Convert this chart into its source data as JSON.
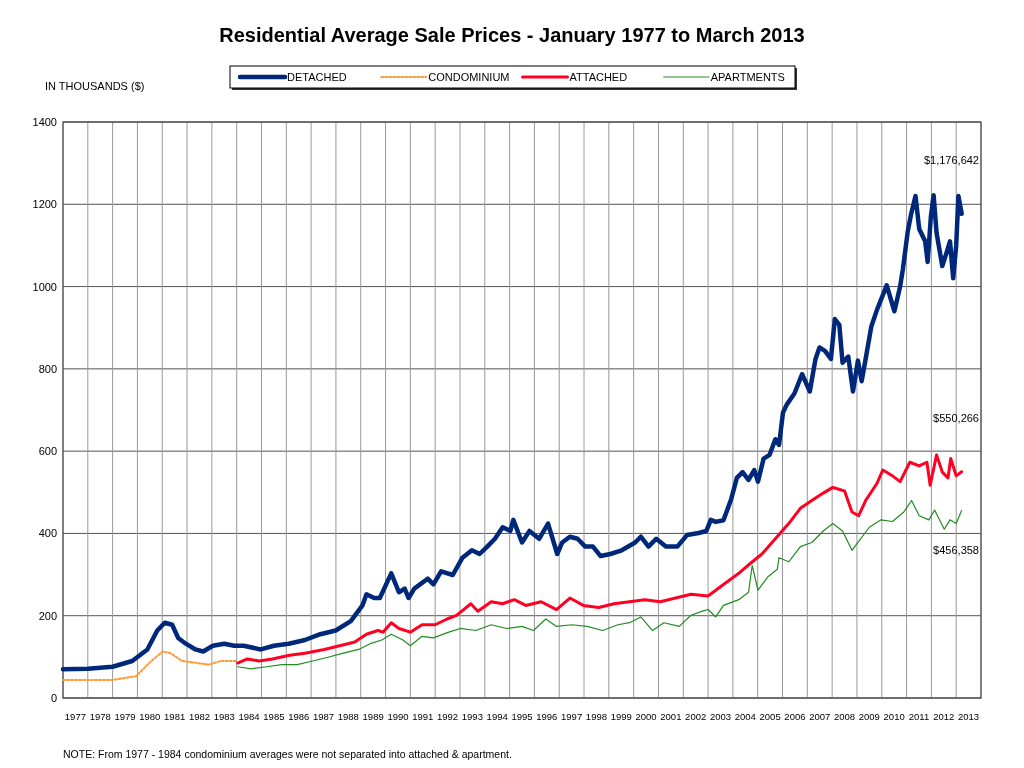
{
  "chart_data": {
    "type": "line",
    "title": "Residential Average Sale Prices  -  January 1977 to March 2013",
    "ylabel": "IN THOUSANDS ($)",
    "xlim": [
      1977,
      2014
    ],
    "ylim": [
      0,
      1400
    ],
    "yticks": [
      0,
      200,
      400,
      600,
      800,
      1000,
      1200,
      1400
    ],
    "xticks": [
      {
        "value": 1977,
        "label": null
      },
      {
        "value": 1977.5,
        "label": "1977"
      },
      {
        "value": 1978,
        "label": null
      },
      {
        "value": 1978.5,
        "label": "1978"
      },
      {
        "value": 1979,
        "label": null
      },
      {
        "value": 1979.5,
        "label": "1979"
      },
      {
        "value": 1980,
        "label": null
      },
      {
        "value": 1980.5,
        "label": "1980"
      },
      {
        "value": 1981,
        "label": null
      },
      {
        "value": 1981.5,
        "label": "1981"
      },
      {
        "value": 1982,
        "label": null
      },
      {
        "value": 1982.5,
        "label": "1982"
      },
      {
        "value": 1983,
        "label": null
      },
      {
        "value": 1983.5,
        "label": "1983"
      },
      {
        "value": 1984,
        "label": null
      },
      {
        "value": 1984.5,
        "label": "1984"
      },
      {
        "value": 1985,
        "label": null
      },
      {
        "value": 1985.5,
        "label": "1985"
      },
      {
        "value": 1986,
        "label": null
      },
      {
        "value": 1986.5,
        "label": "1986"
      },
      {
        "value": 1987,
        "label": null
      },
      {
        "value": 1987.5,
        "label": "1987"
      },
      {
        "value": 1988,
        "label": null
      },
      {
        "value": 1988.5,
        "label": "1988"
      },
      {
        "value": 1989,
        "label": null
      },
      {
        "value": 1989.5,
        "label": "1989"
      },
      {
        "value": 1990,
        "label": null
      },
      {
        "value": 1990.5,
        "label": "1990"
      },
      {
        "value": 1991,
        "label": null
      },
      {
        "value": 1991.5,
        "label": "1991"
      },
      {
        "value": 1992,
        "label": null
      },
      {
        "value": 1992.5,
        "label": "1992"
      },
      {
        "value": 1993,
        "label": null
      },
      {
        "value": 1993.5,
        "label": "1993"
      },
      {
        "value": 1994,
        "label": null
      },
      {
        "value": 1994.5,
        "label": "1994"
      },
      {
        "value": 1995,
        "label": null
      },
      {
        "value": 1995.5,
        "label": "1995"
      },
      {
        "value": 1996,
        "label": null
      },
      {
        "value": 1996.5,
        "label": "1996"
      },
      {
        "value": 1997,
        "label": null
      },
      {
        "value": 1997.5,
        "label": "1997"
      },
      {
        "value": 1998,
        "label": null
      },
      {
        "value": 1998.5,
        "label": "1998"
      },
      {
        "value": 1999,
        "label": null
      },
      {
        "value": 1999.5,
        "label": "1999"
      },
      {
        "value": 2000,
        "label": null
      },
      {
        "value": 2000.5,
        "label": "2000"
      },
      {
        "value": 2001,
        "label": null
      },
      {
        "value": 2001.5,
        "label": "2001"
      },
      {
        "value": 2002,
        "label": null
      },
      {
        "value": 2002.5,
        "label": "2002"
      },
      {
        "value": 2003,
        "label": null
      },
      {
        "value": 2003.5,
        "label": "2003"
      },
      {
        "value": 2004,
        "label": null
      },
      {
        "value": 2004.5,
        "label": "2004"
      },
      {
        "value": 2005,
        "label": null
      },
      {
        "value": 2005.5,
        "label": "2005"
      },
      {
        "value": 2006,
        "label": null
      },
      {
        "value": 2006.5,
        "label": "2006"
      },
      {
        "value": 2007,
        "label": null
      },
      {
        "value": 2007.5,
        "label": "2007"
      },
      {
        "value": 2008,
        "label": null
      },
      {
        "value": 2008.5,
        "label": "2008"
      },
      {
        "value": 2009,
        "label": null
      },
      {
        "value": 2009.5,
        "label": "2009"
      },
      {
        "value": 2010,
        "label": null
      },
      {
        "value": 2010.5,
        "label": "2010"
      },
      {
        "value": 2011,
        "label": null
      },
      {
        "value": 2011.5,
        "label": "2011"
      },
      {
        "value": 2012,
        "label": null
      },
      {
        "value": 2012.5,
        "label": "2012"
      },
      {
        "value": 2013,
        "label": null
      },
      {
        "value": 2013.5,
        "label": "2013"
      },
      {
        "value": 2014,
        "label": null
      }
    ],
    "grid": true,
    "legend": "top",
    "marker": "none",
    "series": [
      {
        "name": "DETACHED",
        "color": "#00287a",
        "line_style": "solid",
        "x": [
          1977.0,
          1978.0,
          1979.0,
          1979.79,
          1980.4,
          1980.8,
          1981.1,
          1981.4,
          1981.64,
          1981.95,
          1982.34,
          1982.65,
          1983.04,
          1983.5,
          1983.9,
          1984.28,
          1984.97,
          1985.5,
          1986.1,
          1986.75,
          1987.37,
          1987.99,
          1988.6,
          1989.07,
          1989.23,
          1989.54,
          1989.77,
          1990.23,
          1990.54,
          1990.77,
          1990.93,
          1991.16,
          1991.39,
          1991.7,
          1991.93,
          1992.24,
          1992.71,
          1993.1,
          1993.48,
          1993.79,
          1994.1,
          1994.41,
          1994.72,
          1995.03,
          1995.15,
          1995.5,
          1995.8,
          1996.19,
          1996.55,
          1996.92,
          1997.12,
          1997.43,
          1997.74,
          1998.05,
          1998.36,
          1998.67,
          1999.06,
          1999.52,
          2000.06,
          2000.29,
          2000.6,
          2000.91,
          2001.3,
          2001.76,
          2002.15,
          2002.62,
          2002.93,
          2003.11,
          2003.31,
          2003.62,
          2003.93,
          2004.16,
          2004.39,
          2004.63,
          2004.86,
          2005.01,
          2005.24,
          2005.48,
          2005.71,
          2005.86,
          2006.02,
          2006.17,
          2006.48,
          2006.79,
          2007.1,
          2007.33,
          2007.49,
          2007.72,
          2007.95,
          2008.11,
          2008.29,
          2008.42,
          2008.65,
          2008.84,
          2009.04,
          2009.19,
          2009.35,
          2009.58,
          2009.81,
          2010.2,
          2010.51,
          2010.74,
          2010.85,
          2011.05,
          2011.18,
          2011.36,
          2011.51,
          2011.75,
          2011.85,
          2011.98,
          2012.09,
          2012.21,
          2012.44,
          2012.6,
          2012.75,
          2012.88,
          2013.0,
          2013.09,
          2013.22
        ],
        "values": [
          70,
          71,
          76,
          90,
          118,
          164,
          183,
          178,
          146,
          132,
          118,
          113,
          127,
          132,
          127,
          127,
          118,
          127,
          132,
          141,
          155,
          164,
          187,
          225,
          252,
          243,
          243,
          303,
          257,
          266,
          243,
          266,
          276,
          290,
          276,
          308,
          299,
          341,
          359,
          350,
          368,
          387,
          415,
          406,
          433,
          378,
          406,
          387,
          424,
          350,
          378,
          392,
          387,
          368,
          368,
          345,
          350,
          359,
          378,
          392,
          368,
          387,
          368,
          368,
          396,
          401,
          406,
          433,
          428,
          432,
          483,
          535,
          549,
          530,
          554,
          526,
          582,
          591,
          629,
          615,
          694,
          713,
          740,
          787,
          745,
          824,
          852,
          843,
          824,
          921,
          907,
          815,
          830,
          745,
          820,
          770,
          824,
          903,
          944,
          1003,
          940,
          1000,
          1042,
          1135,
          1175,
          1220,
          1140,
          1110,
          1060,
          1170,
          1222,
          1130,
          1050,
          1080,
          1110,
          1020,
          1100,
          1220,
          1177
        ]
      },
      {
        "name": "CONDOMINIUM",
        "color": "#ff9933",
        "line_style": "dotted",
        "x": [
          1977.0,
          1978.0,
          1979.0,
          1979.94,
          1980.56,
          1981.02,
          1981.33,
          1981.8,
          1982.42,
          1982.88,
          1983.35,
          1983.97
        ],
        "values": [
          44,
          44,
          44,
          53,
          90,
          113,
          109,
          90,
          85,
          81,
          90,
          90
        ]
      },
      {
        "name": "ATTACHED",
        "color": "#ff0022",
        "line_style": "solid",
        "x": [
          1984.04,
          1984.43,
          1984.9,
          1985.44,
          1986.13,
          1986.75,
          1987.53,
          1988.15,
          1988.76,
          1989.23,
          1989.69,
          1989.9,
          1990.23,
          1990.54,
          1991.0,
          1991.47,
          1992.0,
          1992.48,
          1992.86,
          1993.44,
          1993.72,
          1994.26,
          1994.72,
          1995.19,
          1995.65,
          1996.27,
          1996.89,
          1997.43,
          1997.97,
          1998.59,
          1999.21,
          1999.83,
          2000.45,
          2001.07,
          2001.69,
          2002.31,
          2003.0,
          2003.62,
          2004.24,
          2004.7,
          2005.17,
          2005.71,
          2006.25,
          2006.72,
          2007.18,
          2007.64,
          2008.03,
          2008.5,
          2008.8,
          2009.07,
          2009.35,
          2009.81,
          2010.04,
          2010.43,
          2010.74,
          2011.13,
          2011.51,
          2011.82,
          2011.95,
          2012.21,
          2012.44,
          2012.67,
          2012.78,
          2013.0,
          2013.22
        ],
        "values": [
          85,
          95,
          90,
          95,
          104,
          109,
          118,
          127,
          136,
          155,
          164,
          160,
          183,
          169,
          160,
          178,
          178,
          192,
          201,
          229,
          211,
          234,
          229,
          239,
          225,
          234,
          215,
          243,
          225,
          220,
          229,
          234,
          239,
          234,
          243,
          252,
          248,
          276,
          303,
          327,
          350,
          387,
          424,
          461,
          480,
          498,
          512,
          503,
          452,
          443,
          480,
          522,
          554,
          540,
          526,
          573,
          564,
          573,
          517,
          591,
          549,
          535,
          582,
          540,
          550
        ]
      },
      {
        "name": "APARTMENTS",
        "color": "#228b22",
        "line_style": "solid",
        "x": [
          1984.04,
          1984.59,
          1985.2,
          1985.82,
          1986.44,
          1987.06,
          1987.68,
          1988.3,
          1988.92,
          1989.38,
          1989.85,
          1990.23,
          1990.7,
          1991.0,
          1991.47,
          1991.93,
          1992.55,
          1993.02,
          1993.64,
          1994.26,
          1994.88,
          1995.5,
          1995.96,
          1996.46,
          1996.89,
          1997.51,
          1998.13,
          1998.75,
          1999.37,
          1999.83,
          2000.29,
          2000.76,
          2001.22,
          2001.84,
          2002.31,
          2002.77,
          2003.0,
          2003.31,
          2003.62,
          2004.24,
          2004.63,
          2004.78,
          2005.01,
          2005.4,
          2005.79,
          2005.86,
          2006.25,
          2006.72,
          2007.18,
          2007.64,
          2008.03,
          2008.42,
          2008.8,
          2009.04,
          2009.5,
          2009.97,
          2010.43,
          2010.89,
          2011.2,
          2011.51,
          2011.9,
          2012.13,
          2012.52,
          2012.75,
          2013.0,
          2013.22
        ],
        "values": [
          76,
          71,
          76,
          81,
          81,
          90,
          99,
          109,
          118,
          132,
          141,
          155,
          141,
          127,
          150,
          146,
          160,
          169,
          164,
          178,
          169,
          174,
          164,
          192,
          174,
          178,
          174,
          164,
          178,
          183,
          197,
          164,
          183,
          174,
          201,
          211,
          215,
          197,
          225,
          239,
          257,
          322,
          262,
          294,
          313,
          341,
          331,
          368,
          378,
          406,
          424,
          406,
          359,
          378,
          415,
          433,
          429,
          452,
          480,
          443,
          433,
          457,
          410,
          433,
          424,
          456
        ]
      }
    ],
    "annotations": [
      "$1,176,642",
      "$550,266",
      "$456,358",
      "NOTE:  From 1977 - 1984 condominium averages were not separated into attached & apartment."
    ]
  }
}
